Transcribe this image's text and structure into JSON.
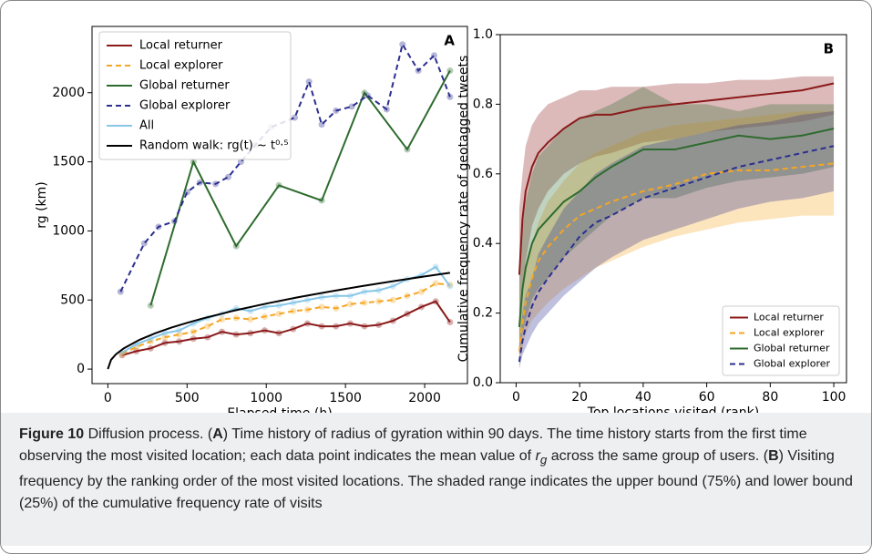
{
  "chart_data": [
    {
      "type": "line",
      "panel_label": "A",
      "x_label": "Elapsed time (h)",
      "y_label": "rg (km)",
      "xlim": [
        -100,
        2270
      ],
      "ylim": [
        -105,
        2480
      ],
      "xticks": [
        0,
        500,
        1000,
        1500,
        2000
      ],
      "yticks": [
        0,
        500,
        1000,
        1500,
        2000
      ],
      "legend": "upper left",
      "markers": true,
      "series": [
        {
          "name": "Local returner",
          "color": "#8b1a1a",
          "dash": false,
          "x": [
            90,
            180,
            270,
            360,
            450,
            540,
            630,
            720,
            810,
            900,
            990,
            1080,
            1170,
            1260,
            1350,
            1440,
            1530,
            1620,
            1710,
            1800,
            1890,
            1980,
            2070,
            2160
          ],
          "values": [
            100,
            130,
            150,
            190,
            200,
            220,
            230,
            270,
            250,
            260,
            280,
            260,
            290,
            330,
            310,
            310,
            330,
            310,
            320,
            350,
            400,
            450,
            490,
            340
          ]
        },
        {
          "name": "Local explorer",
          "color": "#f5a623",
          "dash": true,
          "x": [
            90,
            180,
            270,
            360,
            450,
            540,
            630,
            720,
            810,
            900,
            990,
            1080,
            1170,
            1260,
            1350,
            1440,
            1530,
            1620,
            1710,
            1800,
            1890,
            1980,
            2070,
            2160
          ],
          "values": [
            110,
            160,
            200,
            230,
            250,
            270,
            310,
            360,
            370,
            360,
            380,
            400,
            420,
            430,
            450,
            440,
            470,
            480,
            490,
            500,
            530,
            560,
            620,
            610
          ]
        },
        {
          "name": "Global returner",
          "color": "#2e6b2e",
          "dash": false,
          "x": [
            270,
            540,
            810,
            1080,
            1350,
            1620,
            1890,
            2160
          ],
          "values": [
            460,
            1500,
            890,
            1330,
            1220,
            2000,
            1590,
            2160
          ]
        },
        {
          "name": "Global explorer",
          "color": "#2b2f8f",
          "dash": true,
          "x": [
            80,
            230,
            320,
            420,
            500,
            580,
            680,
            760,
            840,
            930,
            1030,
            1180,
            1270,
            1350,
            1440,
            1540,
            1640,
            1760,
            1860,
            1960,
            2060,
            2160
          ],
          "values": [
            560,
            910,
            1030,
            1070,
            1280,
            1350,
            1340,
            1390,
            1500,
            1620,
            1750,
            1820,
            2080,
            1770,
            1870,
            1900,
            1980,
            1880,
            2350,
            2160,
            2270,
            1970
          ]
        },
        {
          "name": "All",
          "color": "#87c6e8",
          "dash": false,
          "x": [
            90,
            180,
            270,
            360,
            450,
            540,
            630,
            720,
            810,
            900,
            990,
            1080,
            1170,
            1260,
            1350,
            1440,
            1530,
            1620,
            1710,
            1800,
            1890,
            1980,
            2070,
            2160
          ],
          "values": [
            120,
            180,
            220,
            260,
            280,
            330,
            370,
            400,
            440,
            420,
            450,
            460,
            480,
            500,
            520,
            530,
            530,
            560,
            570,
            600,
            650,
            680,
            740,
            600
          ]
        },
        {
          "name": "Random walk: rg(t) ~ t⁰·⁵",
          "color": "#000000",
          "dash": false,
          "no_markers": true,
          "x": [
            0,
            20,
            50,
            100,
            200,
            300,
            400,
            500,
            600,
            800,
            1000,
            1200,
            1400,
            1600,
            1800,
            2000,
            2160
          ],
          "values": [
            0,
            67,
            106,
            150,
            212,
            260,
            300,
            335,
            367,
            424,
            474,
            520,
            561,
            600,
            636,
            671,
            697
          ]
        }
      ]
    },
    {
      "type": "band-line",
      "panel_label": "B",
      "x_label": "Top locations visited (rank)",
      "y_label": "Cumulative frequency rate of geotagged tweets",
      "xlim": [
        -5,
        104
      ],
      "ylim": [
        0,
        1
      ],
      "xticks": [
        0,
        20,
        40,
        60,
        80,
        100
      ],
      "yticks": [
        {
          "value": 0,
          "label": "0.0"
        },
        0.2,
        0.4,
        0.6,
        0.8,
        {
          "value": 1,
          "label": "1.0"
        }
      ],
      "legend": "lower right",
      "x": [
        1,
        2,
        3,
        5,
        7,
        10,
        15,
        20,
        25,
        30,
        40,
        50,
        60,
        70,
        80,
        90,
        100
      ],
      "series": [
        {
          "name": "Local returner",
          "color": "#8b1a1a",
          "dash": false,
          "values": [
            0.31,
            0.47,
            0.55,
            0.62,
            0.66,
            0.69,
            0.73,
            0.76,
            0.77,
            0.77,
            0.79,
            0.8,
            0.81,
            0.82,
            0.83,
            0.84,
            0.86
          ],
          "lower": [
            0.1,
            0.25,
            0.35,
            0.45,
            0.5,
            0.55,
            0.6,
            0.63,
            0.65,
            0.66,
            0.69,
            0.7,
            0.72,
            0.73,
            0.74,
            0.75,
            0.77
          ],
          "upper": [
            0.5,
            0.6,
            0.68,
            0.74,
            0.77,
            0.8,
            0.82,
            0.84,
            0.84,
            0.85,
            0.85,
            0.86,
            0.86,
            0.87,
            0.87,
            0.88,
            0.88
          ]
        },
        {
          "name": "Local explorer",
          "color": "#f5a623",
          "dash": true,
          "values": [
            0.09,
            0.17,
            0.23,
            0.3,
            0.35,
            0.39,
            0.44,
            0.48,
            0.5,
            0.52,
            0.55,
            0.57,
            0.6,
            0.61,
            0.61,
            0.62,
            0.63
          ],
          "lower": [
            0.06,
            0.1,
            0.14,
            0.18,
            0.2,
            0.23,
            0.27,
            0.3,
            0.33,
            0.35,
            0.39,
            0.42,
            0.44,
            0.46,
            0.47,
            0.48,
            0.48
          ],
          "upper": [
            0.15,
            0.25,
            0.32,
            0.4,
            0.46,
            0.52,
            0.58,
            0.63,
            0.66,
            0.68,
            0.72,
            0.74,
            0.75,
            0.76,
            0.77,
            0.78,
            0.78
          ]
        },
        {
          "name": "Global returner",
          "color": "#2e6b2e",
          "dash": false,
          "values": [
            0.16,
            0.27,
            0.33,
            0.4,
            0.44,
            0.47,
            0.52,
            0.55,
            0.59,
            0.62,
            0.67,
            0.67,
            0.69,
            0.71,
            0.7,
            0.71,
            0.73
          ],
          "lower": [
            0.08,
            0.14,
            0.18,
            0.24,
            0.27,
            0.3,
            0.36,
            0.4,
            0.44,
            0.48,
            0.53,
            0.53,
            0.56,
            0.58,
            0.59,
            0.6,
            0.62
          ],
          "upper": [
            0.3,
            0.44,
            0.52,
            0.6,
            0.65,
            0.68,
            0.73,
            0.76,
            0.78,
            0.8,
            0.85,
            0.8,
            0.8,
            0.78,
            0.8,
            0.8,
            0.8
          ]
        },
        {
          "name": "Global explorer",
          "color": "#2b2f8f",
          "dash": true,
          "values": [
            0.06,
            0.12,
            0.16,
            0.22,
            0.26,
            0.3,
            0.36,
            0.42,
            0.46,
            0.48,
            0.53,
            0.56,
            0.59,
            0.62,
            0.64,
            0.66,
            0.68
          ],
          "lower": [
            0.04,
            0.08,
            0.1,
            0.14,
            0.17,
            0.2,
            0.25,
            0.29,
            0.33,
            0.36,
            0.41,
            0.44,
            0.47,
            0.5,
            0.52,
            0.53,
            0.55
          ],
          "upper": [
            0.1,
            0.2,
            0.25,
            0.3,
            0.37,
            0.42,
            0.5,
            0.55,
            0.6,
            0.63,
            0.68,
            0.7,
            0.72,
            0.74,
            0.75,
            0.77,
            0.78
          ]
        }
      ]
    }
  ],
  "caption": {
    "segments": [
      "Figure 10",
      "  Diffusion process. (",
      "A",
      ") Time history of radius of gyration within 90 days. The time history starts from the first time observing the most visited location; each data point indicates the mean value of ",
      "r",
      "g",
      " across the same group of users. (",
      "B",
      ") Visiting frequency by the ranking order of the most visited locations. The shaded range indicates the upper bound (75%) and lower bound (25%) of the cumulative frequency rate of visits"
    ]
  }
}
